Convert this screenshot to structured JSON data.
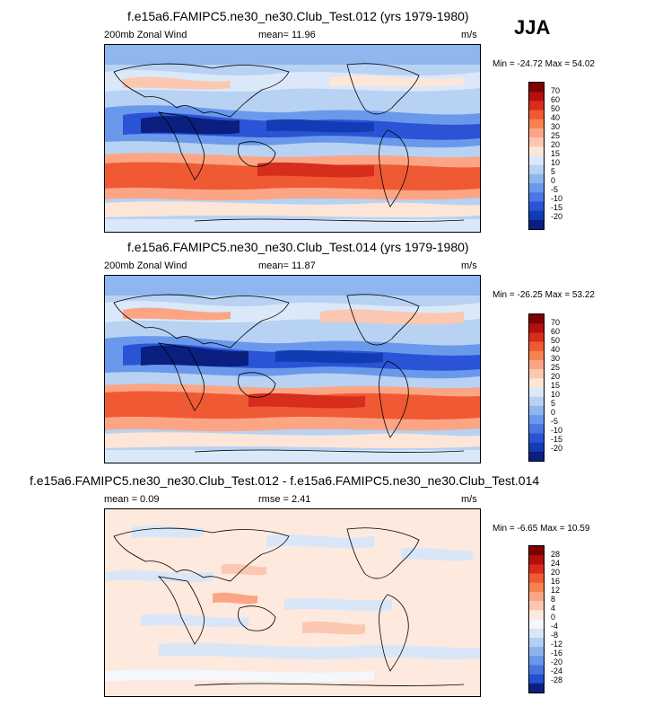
{
  "season": "JJA",
  "panels": [
    {
      "title": "f.e15a6.FAMIPC5.ne30_ne30.Club_Test.012 (yrs 1979-1980)",
      "left_label": "200mb Zonal Wind",
      "mid_label": "mean=  11.96",
      "units": "m/s",
      "minmax": "Min = -24.72 Max =  54.02",
      "colorbar_ticks": [
        "70",
        "60",
        "50",
        "40",
        "30",
        "25",
        "20",
        "15",
        "10",
        "5",
        "0",
        "-5",
        "-10",
        "-15",
        "-20"
      ]
    },
    {
      "title": "f.e15a6.FAMIPC5.ne30_ne30.Club_Test.014 (yrs 1979-1980)",
      "left_label": "200mb Zonal Wind",
      "mid_label": "mean=  11.87",
      "units": "m/s",
      "minmax": "Min = -26.25 Max =  53.22",
      "colorbar_ticks": [
        "70",
        "60",
        "50",
        "40",
        "30",
        "25",
        "20",
        "15",
        "10",
        "5",
        "0",
        "-5",
        "-10",
        "-15",
        "-20"
      ]
    },
    {
      "title": "f.e15a6.FAMIPC5.ne30_ne30.Club_Test.012 - f.e15a6.FAMIPC5.ne30_ne30.Club_Test.014",
      "left_label": "mean =   0.09",
      "mid_label": "rmse =   2.41",
      "units": "m/s",
      "minmax": "Min =  -6.65 Max =  10.59",
      "colorbar_ticks": [
        "28",
        "24",
        "20",
        "16",
        "12",
        "8",
        "4",
        "0",
        "-4",
        "-8",
        "-12",
        "-16",
        "-20",
        "-24",
        "-28"
      ]
    }
  ],
  "colors": {
    "field_scale": [
      "#7f0000",
      "#b30f0b",
      "#d62d1c",
      "#ef5a34",
      "#f7824f",
      "#fba585",
      "#fcc7b0",
      "#fde6d8",
      "#dbe8f9",
      "#b8d2f3",
      "#8fb6ee",
      "#6a99ec",
      "#4a77e4",
      "#2a53d6",
      "#123cb3",
      "#0a1f80"
    ],
    "diff_scale": [
      "#7f0000",
      "#b30f0b",
      "#d62d1c",
      "#ef5a34",
      "#f7824f",
      "#fba585",
      "#fcc7b0",
      "#fde9dd",
      "#f4f7fb",
      "#d9e6f8",
      "#b4cff3",
      "#8db3ee",
      "#6896ea",
      "#4675e2",
      "#2450cd",
      "#0b2080"
    ]
  }
}
